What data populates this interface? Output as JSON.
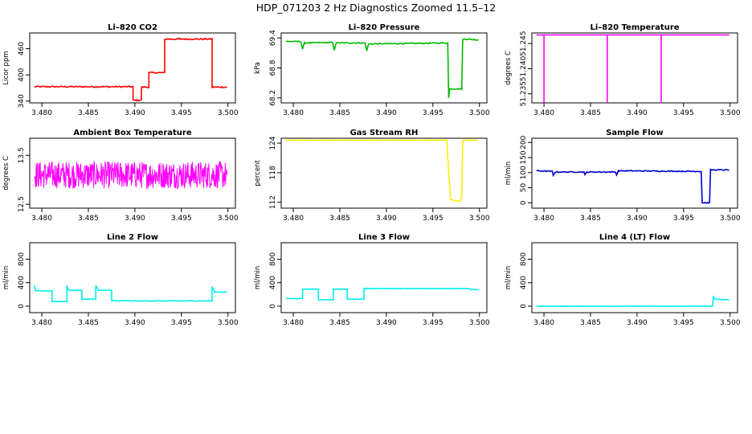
{
  "title": "HDP_071203  2 Hz Diagnostics Zoomed 11.5–12",
  "chart_data": [
    {
      "type": "line",
      "title": "Li–820 CO2",
      "ylabel": "Licor ppm",
      "color": "#ff0000",
      "xlim": [
        3.4787,
        3.5008
      ],
      "ylim": [
        336,
        496
      ],
      "xticks": [
        "3.480",
        "3.485",
        "3.490",
        "3.495",
        "3.500"
      ],
      "xtick_values": [
        3.48,
        3.485,
        3.49,
        3.495,
        3.5
      ],
      "yticks": [
        "340",
        "400",
        "460"
      ],
      "ytick_values": [
        340,
        400,
        460
      ],
      "noise": 1.5,
      "x": [
        3.4792,
        3.4898,
        3.4898,
        3.4907,
        3.4907,
        3.4915,
        3.4915,
        3.4932,
        3.4932,
        3.4948,
        3.4948,
        3.4983,
        3.4983,
        3.4999
      ],
      "y": [
        373,
        373,
        342,
        342,
        372,
        372,
        405,
        405,
        482,
        482,
        482,
        482,
        372,
        372
      ]
    },
    {
      "type": "line",
      "title": "Li–820 Pressure",
      "ylabel": "kPa",
      "color": "#00bb00",
      "xlim": [
        3.4787,
        3.5008
      ],
      "ylim": [
        68.1,
        69.5
      ],
      "xticks": [
        "3.480",
        "3.485",
        "3.490",
        "3.495",
        "3.500"
      ],
      "xtick_values": [
        3.48,
        3.485,
        3.49,
        3.495,
        3.5
      ],
      "yticks": [
        "68.2",
        "68.8",
        "69.4"
      ],
      "ytick_values": [
        68.2,
        68.8,
        69.4
      ],
      "noise": 0.01,
      "x": [
        3.4792,
        3.4808,
        3.481,
        3.4812,
        3.4842,
        3.4844,
        3.4846,
        3.4877,
        3.4879,
        3.4881,
        3.4966,
        3.4967,
        3.4968,
        3.4981,
        3.4982,
        3.4984,
        3.4999
      ],
      "y": [
        69.33,
        69.33,
        69.18,
        69.3,
        69.31,
        69.16,
        69.3,
        69.3,
        69.15,
        69.28,
        69.3,
        68.2,
        68.38,
        68.38,
        69.36,
        69.38,
        69.36
      ]
    },
    {
      "type": "line",
      "title": "Li–820 Temperature",
      "ylabel": "degrees C",
      "color": "#ff00ff",
      "xlim": [
        3.4787,
        3.5008
      ],
      "ylim": [
        51.2332,
        51.2471
      ],
      "xticks": [
        "3.480",
        "3.485",
        "3.490",
        "3.495",
        "3.500"
      ],
      "xtick_values": [
        3.48,
        3.485,
        3.49,
        3.495,
        3.5
      ],
      "yticks": [
        "51.235",
        "51.240",
        "51.245"
      ],
      "ytick_values": [
        51.235,
        51.24,
        51.245
      ],
      "noise": 0,
      "x": [
        3.4792,
        3.48,
        3.48,
        3.48,
        3.4868,
        3.4868,
        3.4868,
        3.4926,
        3.4926,
        3.4926,
        3.4999
      ],
      "y": [
        51.2467,
        51.2467,
        51.2332,
        51.2467,
        51.2467,
        51.2332,
        51.2467,
        51.2467,
        51.2332,
        51.2467,
        51.2467
      ]
    },
    {
      "type": "line",
      "title": "Ambient Box Temperature",
      "ylabel": "degrees C",
      "color": "#ff00ff",
      "xlim": [
        3.4787,
        3.5008
      ],
      "ylim": [
        12.42,
        13.85
      ],
      "xticks": [
        "3.480",
        "3.485",
        "3.490",
        "3.495",
        "3.500"
      ],
      "xtick_values": [
        3.48,
        3.485,
        3.49,
        3.495,
        3.5
      ],
      "yticks": [
        "12.5",
        "13.5"
      ],
      "ytick_values": [
        12.5,
        13.5
      ],
      "noise": 0.28,
      "x": [
        3.4792,
        3.4999
      ],
      "y": [
        13.1,
        13.1
      ]
    },
    {
      "type": "line",
      "title": "Gas Stream RH",
      "ylabel": "percent",
      "color": "#ffee00",
      "xlim": [
        3.4787,
        3.5008
      ],
      "ylim": [
        110.8,
        125.0
      ],
      "xticks": [
        "3.480",
        "3.485",
        "3.490",
        "3.495",
        "3.500"
      ],
      "xtick_values": [
        3.48,
        3.485,
        3.49,
        3.495,
        3.5
      ],
      "yticks": [
        "112",
        "118",
        "124"
      ],
      "ytick_values": [
        112,
        118,
        124
      ],
      "noise": 0.05,
      "x": [
        3.4792,
        3.4965,
        3.4967,
        3.4969,
        3.4979,
        3.4981,
        3.4982,
        3.4999
      ],
      "y": [
        124.6,
        124.6,
        118.0,
        112.5,
        112.2,
        113.0,
        124.6,
        124.6
      ]
    },
    {
      "type": "line",
      "title": "Sample Flow",
      "ylabel": "ml/min",
      "color": "#0000cc",
      "xlim": [
        3.4787,
        3.5008
      ],
      "ylim": [
        -18,
        214
      ],
      "xticks": [
        "3.480",
        "3.485",
        "3.490",
        "3.495",
        "3.500"
      ],
      "xtick_values": [
        3.48,
        3.485,
        3.49,
        3.495,
        3.5
      ],
      "yticks": [
        "0",
        "50",
        "100",
        "150",
        "200"
      ],
      "ytick_values": [
        0,
        50,
        100,
        150,
        200
      ],
      "noise": 1.5,
      "x": [
        3.4792,
        3.4809,
        3.481,
        3.4812,
        3.4843,
        3.4844,
        3.4846,
        3.4877,
        3.4878,
        3.488,
        3.4969,
        3.497,
        3.4978,
        3.4979,
        3.4999
      ],
      "y": [
        106,
        104,
        90,
        102,
        102,
        92,
        102,
        102,
        92,
        106,
        104,
        0,
        0,
        109,
        109
      ]
    },
    {
      "type": "line",
      "title": "Line 2 Flow",
      "ylabel": "ml/min",
      "color": "#00eeee",
      "xlim": [
        3.4787,
        3.5008
      ],
      "ylim": [
        -110,
        1080
      ],
      "xticks": [
        "3.480",
        "3.485",
        "3.490",
        "3.495",
        "3.500"
      ],
      "xtick_values": [
        3.48,
        3.485,
        3.49,
        3.495,
        3.5
      ],
      "yticks": [
        "0",
        "400",
        "800"
      ],
      "ytick_values": [
        0,
        400,
        800
      ],
      "noise": 5,
      "x": [
        3.4792,
        3.4793,
        3.4796,
        3.4811,
        3.4811,
        3.4827,
        3.4827,
        3.4829,
        3.4843,
        3.4843,
        3.4858,
        3.4858,
        3.4861,
        3.4875,
        3.4875,
        3.4878,
        3.4983,
        3.4983,
        3.4986,
        3.4999
      ],
      "y": [
        350,
        270,
        260,
        260,
        80,
        80,
        340,
        270,
        270,
        120,
        120,
        350,
        270,
        270,
        100,
        90,
        90,
        330,
        240,
        240
      ]
    },
    {
      "type": "line",
      "title": "Line 3 Flow",
      "ylabel": "ml/min",
      "color": "#00eeee",
      "xlim": [
        3.4787,
        3.5008
      ],
      "ylim": [
        -110,
        1080
      ],
      "xticks": [
        "3.480",
        "3.485",
        "3.490",
        "3.495",
        "3.500"
      ],
      "xtick_values": [
        3.48,
        3.485,
        3.49,
        3.495,
        3.5
      ],
      "yticks": [
        "0",
        "400",
        "800"
      ],
      "ytick_values": [
        0,
        400,
        800
      ],
      "noise": 4,
      "x": [
        3.4792,
        3.481,
        3.481,
        3.4827,
        3.4827,
        3.4843,
        3.4843,
        3.4858,
        3.4858,
        3.4876,
        3.4876,
        3.4983,
        3.4999
      ],
      "y": [
        130,
        130,
        290,
        290,
        110,
        110,
        290,
        290,
        120,
        120,
        300,
        300,
        280
      ]
    },
    {
      "type": "line",
      "title": "Line 4 (LT) Flow",
      "ylabel": "ml/min",
      "color": "#00eeee",
      "xlim": [
        3.4787,
        3.5008
      ],
      "ylim": [
        -110,
        1080
      ],
      "xticks": [
        "3.480",
        "3.485",
        "3.490",
        "3.495",
        "3.500"
      ],
      "xtick_values": [
        3.48,
        3.485,
        3.49,
        3.495,
        3.5
      ],
      "yticks": [
        "0",
        "400",
        "800"
      ],
      "ytick_values": [
        0,
        400,
        800
      ],
      "noise": 2,
      "x": [
        3.4792,
        3.4981,
        3.4982,
        3.4984,
        3.4999
      ],
      "y": [
        0,
        0,
        160,
        120,
        110
      ]
    }
  ]
}
